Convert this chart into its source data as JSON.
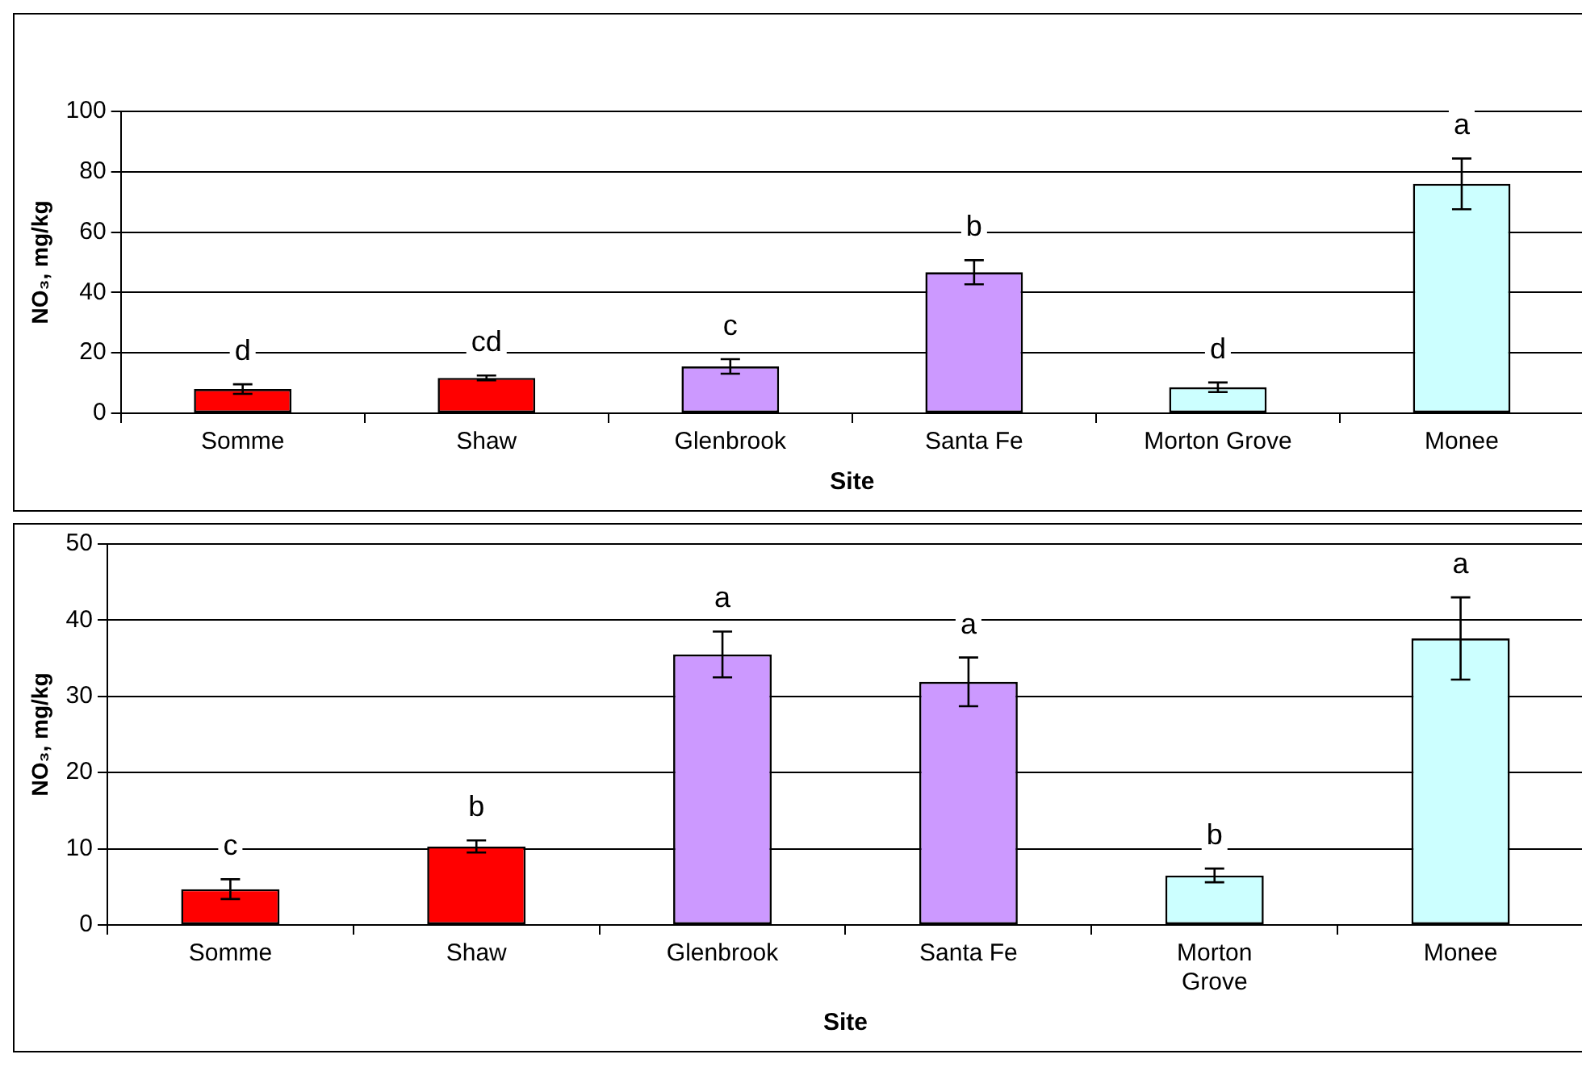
{
  "chart_data": [
    {
      "type": "bar",
      "categories": [
        "Somme",
        "Shaw",
        "Glenbrook",
        "Santa Fe",
        "Morton Grove",
        "Monee"
      ],
      "values": [
        8.0,
        11.7,
        15.5,
        46.7,
        8.6,
        76
      ],
      "errors": [
        1.6,
        0.8,
        2.4,
        4,
        1.6,
        8.4
      ],
      "value_labels": [
        "d",
        "cd",
        "c",
        "b",
        "d",
        "a"
      ],
      "colors": [
        "#ff0000",
        "#ff0000",
        "#cc99ff",
        "#cc99ff",
        "#ccffff",
        "#ccffff"
      ],
      "xlabel": "Site",
      "ylabel": "NO₃, mg/kg",
      "ylim": [
        0,
        100
      ],
      "yticks": [
        0,
        20,
        40,
        60,
        80,
        100
      ],
      "grid": "y",
      "legend": false
    },
    {
      "type": "bar",
      "categories": [
        "Somme",
        "Shaw",
        "Glenbrook",
        "Santa Fe",
        "Morton Grove",
        "Monee"
      ],
      "values": [
        4.7,
        10.3,
        35.5,
        31.9,
        6.5,
        37.6
      ],
      "errors": [
        1.3,
        0.8,
        3,
        3.2,
        0.9,
        5.4
      ],
      "value_labels": [
        "c",
        "b",
        "a",
        "a",
        "b",
        "a"
      ],
      "colors": [
        "#ff0000",
        "#ff0000",
        "#cc99ff",
        "#cc99ff",
        "#ccffff",
        "#ccffff"
      ],
      "xlabel": "Site",
      "ylabel": "NO₃, mg/kg",
      "ylim": [
        0,
        50
      ],
      "yticks": [
        0,
        10,
        20,
        30,
        40,
        50
      ],
      "grid": "y",
      "legend": false
    }
  ]
}
